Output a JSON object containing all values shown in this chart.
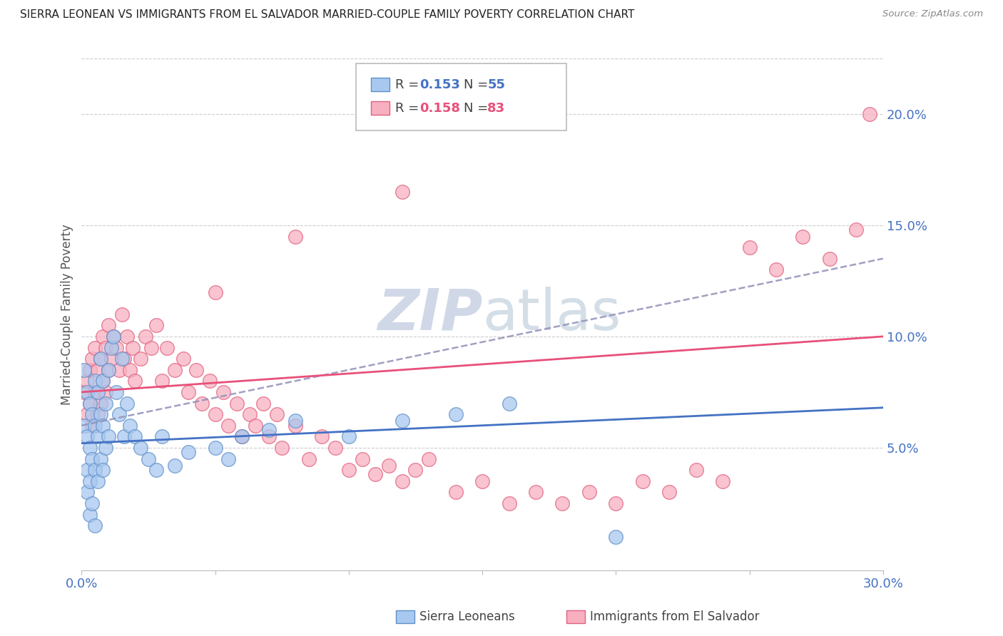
{
  "title": "SIERRA LEONEAN VS IMMIGRANTS FROM EL SALVADOR MARRIED-COUPLE FAMILY POVERTY CORRELATION CHART",
  "source": "Source: ZipAtlas.com",
  "ylabel": "Married-Couple Family Poverty",
  "x_min": 0.0,
  "x_max": 0.3,
  "y_min": -0.005,
  "y_max": 0.225,
  "color_blue_fill": "#a8c8f0",
  "color_blue_edge": "#6090c8",
  "color_pink_fill": "#f8b0c0",
  "color_pink_edge": "#e06080",
  "color_blue_line": "#4472c4",
  "color_pink_line": "#e8507a",
  "color_dash_line": "#9090b8",
  "color_axis_labels": "#4472c4",
  "color_grid": "#cccccc",
  "watermark_color": "#d0d8e8"
}
